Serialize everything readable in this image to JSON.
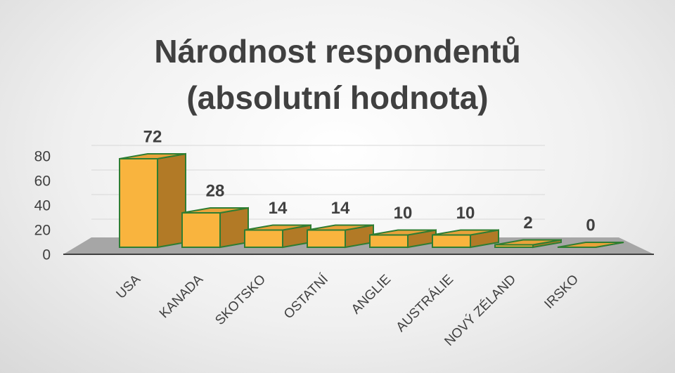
{
  "chart_data": {
    "type": "bar3d",
    "title": "Národnost respondentů (absolutní hodnota)",
    "categories": [
      "USA",
      "KANADA",
      "SKOTSKO",
      "OSTATNÍ",
      "ANGLIE",
      "AUSTRÁLIE",
      "NOVÝ ZÉLAND",
      "IRSKO"
    ],
    "values": [
      72,
      28,
      14,
      14,
      10,
      10,
      2,
      0
    ],
    "color": "#f9b43e",
    "edge_color": "#2f7d32",
    "ylim": [
      0,
      80
    ],
    "yticks": [
      0,
      20,
      40,
      60,
      80
    ],
    "grid": true
  }
}
